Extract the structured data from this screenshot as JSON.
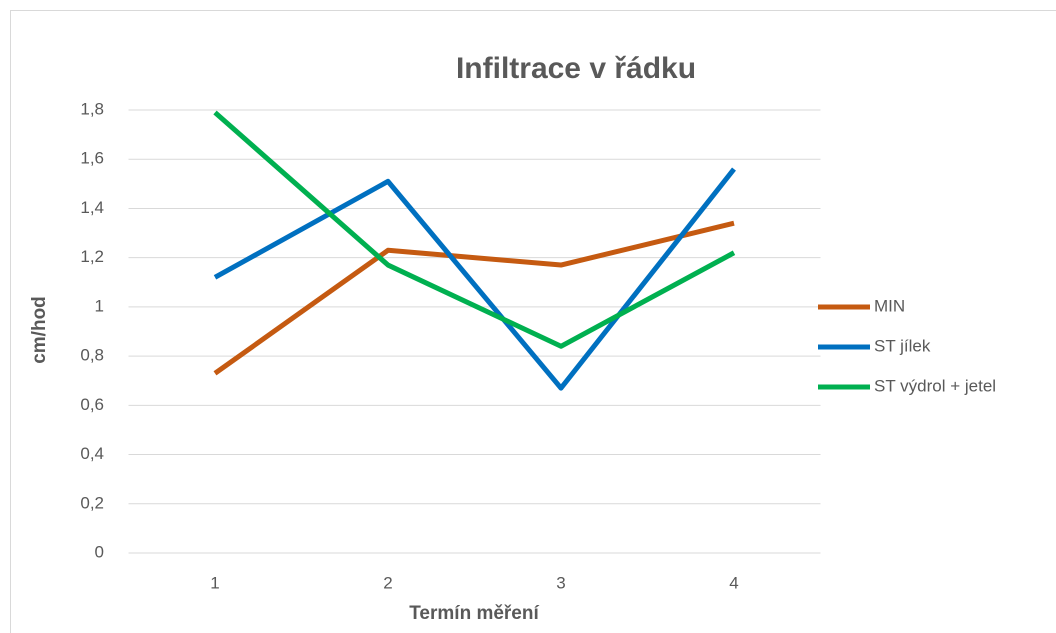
{
  "chart_data": {
    "type": "line",
    "title": "Infiltrace v řádku",
    "x_label": "Termín měření",
    "y_label": "cm/hod",
    "categories": [
      "1",
      "2",
      "3",
      "4"
    ],
    "series": [
      {
        "name": "MIN",
        "color": "#c55a11",
        "values": [
          0.73,
          1.23,
          1.17,
          1.34
        ]
      },
      {
        "name": "ST jílek",
        "color": "#0070c0",
        "values": [
          1.12,
          1.51,
          0.67,
          1.56
        ]
      },
      {
        "name": "ST výdrol + jetel",
        "color": "#00b050",
        "values": [
          1.79,
          1.17,
          0.84,
          1.22
        ]
      }
    ],
    "ylim": [
      0,
      1.8
    ],
    "yticks": [
      0,
      {
        "value": 0.2,
        "label": "0,2"
      },
      {
        "value": 0.4,
        "label": "0,4"
      },
      {
        "value": 0.6,
        "label": "0,6"
      },
      {
        "value": 0.8,
        "label": "0,8"
      },
      1,
      {
        "value": 1.2,
        "label": "1,2"
      },
      {
        "value": 1.4,
        "label": "1,4"
      },
      {
        "value": 1.6,
        "label": "1,6"
      },
      {
        "value": 1.8,
        "label": "1,8"
      }
    ],
    "grid": true,
    "legend": "right"
  }
}
